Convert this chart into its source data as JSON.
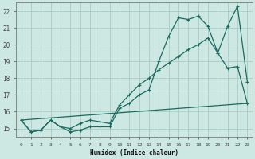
{
  "bg_color": "#cde8e2",
  "grid_color": "#aaccc6",
  "line_color": "#1a6b60",
  "xlabel": "Humidex (Indice chaleur)",
  "xlim": [
    -0.5,
    23.5
  ],
  "ylim": [
    14.5,
    22.5
  ],
  "yticks": [
    15,
    16,
    17,
    18,
    19,
    20,
    21,
    22
  ],
  "xticks": [
    0,
    1,
    2,
    3,
    4,
    5,
    6,
    7,
    8,
    9,
    10,
    11,
    12,
    13,
    14,
    15,
    16,
    17,
    18,
    19,
    20,
    21,
    22,
    23
  ],
  "line1_x": [
    0,
    1,
    2,
    3,
    4,
    5,
    6,
    7,
    8,
    9,
    10,
    11,
    12,
    13,
    14,
    15,
    16,
    17,
    18,
    19,
    20,
    21,
    22,
    23
  ],
  "line1_y": [
    15.5,
    14.8,
    14.9,
    15.5,
    15.1,
    14.8,
    14.9,
    15.1,
    15.1,
    15.1,
    16.2,
    16.5,
    17.0,
    17.3,
    19.0,
    20.5,
    21.6,
    21.5,
    21.7,
    21.1,
    19.5,
    21.1,
    22.3,
    17.8
  ],
  "line2_x": [
    0,
    1,
    2,
    3,
    4,
    5,
    6,
    7,
    8,
    9,
    10,
    11,
    12,
    13,
    14,
    15,
    16,
    17,
    18,
    19,
    20,
    21,
    22,
    23
  ],
  "line2_y": [
    15.5,
    14.8,
    14.9,
    15.5,
    15.1,
    15.0,
    15.3,
    15.5,
    15.4,
    15.3,
    16.4,
    17.0,
    17.6,
    18.0,
    18.5,
    18.9,
    19.3,
    19.7,
    20.0,
    20.4,
    19.5,
    18.6,
    18.7,
    16.5
  ],
  "line3_x": [
    0,
    23
  ],
  "line3_y": [
    15.5,
    16.5
  ]
}
